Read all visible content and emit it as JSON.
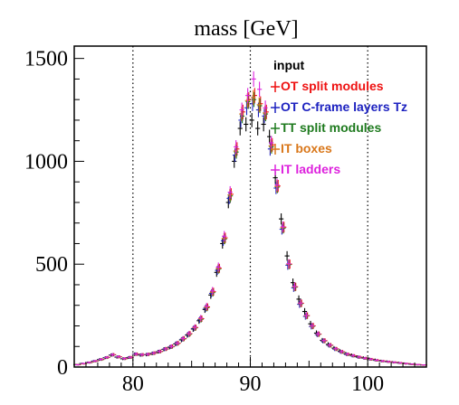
{
  "chart_data": {
    "type": "scatter",
    "title": "mass [GeV]",
    "xlabel": "",
    "ylabel": "",
    "xlim": [
      75,
      105
    ],
    "ylim": [
      0,
      1560
    ],
    "x_ticks": [
      80,
      90,
      100
    ],
    "y_ticks": [
      0,
      500,
      1000,
      1500
    ],
    "x_tick_labels": [
      "80",
      "90",
      "100"
    ],
    "y_tick_labels": [
      "0",
      "500",
      "1000",
      "1500"
    ],
    "grid": "vertical dotted lines at x ticks",
    "legend_position": "top-right",
    "error_bars": true,
    "x": [
      75.25,
      75.75,
      76.25,
      76.75,
      77.25,
      77.75,
      78.25,
      78.75,
      79.25,
      79.75,
      80.25,
      80.75,
      81.25,
      81.75,
      82.25,
      82.75,
      83.25,
      83.75,
      84.25,
      84.75,
      85.25,
      85.75,
      86.25,
      86.75,
      87.25,
      87.75,
      88.25,
      88.75,
      89.25,
      89.75,
      90.25,
      90.75,
      91.25,
      91.75,
      92.25,
      92.75,
      93.25,
      93.75,
      94.25,
      94.75,
      95.25,
      95.75,
      96.25,
      96.75,
      97.25,
      97.75,
      98.25,
      98.75,
      99.25,
      99.75,
      100.25,
      100.75,
      101.25,
      101.75,
      102.25,
      102.75,
      103.25,
      103.75,
      104.25,
      104.75
    ],
    "series": [
      {
        "name": "input",
        "color": "#000000",
        "values": [
          12,
          17,
          22,
          28,
          36,
          45,
          58,
          48,
          40,
          46,
          62,
          58,
          60,
          66,
          74,
          86,
          96,
          112,
          132,
          155,
          185,
          225,
          280,
          350,
          460,
          600,
          800,
          1000,
          1160,
          1180,
          1200,
          1160,
          1180,
          1120,
          920,
          720,
          540,
          410,
          330,
          270,
          210,
          165,
          130,
          110,
          92,
          78,
          65,
          58,
          50,
          45,
          40,
          35,
          30,
          27,
          24,
          21,
          18,
          15,
          12,
          10
        ]
      },
      {
        "name": "OT split modules",
        "color": "#ee1111",
        "values": [
          11,
          16,
          22,
          29,
          37,
          47,
          60,
          50,
          41,
          47,
          63,
          60,
          62,
          68,
          76,
          88,
          100,
          116,
          138,
          162,
          192,
          235,
          292,
          366,
          480,
          628,
          840,
          1060,
          1240,
          1300,
          1320,
          1280,
          1240,
          1080,
          880,
          680,
          500,
          390,
          310,
          250,
          200,
          160,
          128,
          106,
          88,
          74,
          62,
          55,
          48,
          43,
          38,
          33,
          29,
          26,
          23,
          20,
          17,
          14,
          12,
          10
        ]
      },
      {
        "name": "OT C-frame layers Tz",
        "color": "#1d22c0",
        "values": [
          12,
          17,
          22,
          29,
          37,
          46,
          59,
          49,
          41,
          47,
          63,
          59,
          61,
          67,
          75,
          87,
          98,
          114,
          135,
          158,
          188,
          230,
          286,
          358,
          470,
          614,
          820,
          1030,
          1200,
          1260,
          1280,
          1250,
          1220,
          1060,
          870,
          670,
          495,
          385,
          305,
          246,
          197,
          158,
          126,
          105,
          87,
          73,
          61,
          54,
          47,
          42,
          37,
          32,
          28,
          25,
          22,
          19,
          16,
          13,
          11,
          9
        ]
      },
      {
        "name": "TT split modules",
        "color": "#1e7a1e",
        "values": [
          11,
          16,
          21,
          28,
          36,
          46,
          59,
          49,
          40,
          46,
          62,
          59,
          61,
          67,
          75,
          87,
          98,
          114,
          136,
          159,
          190,
          232,
          288,
          362,
          476,
          622,
          832,
          1045,
          1220,
          1290,
          1300,
          1270,
          1230,
          1070,
          875,
          675,
          498,
          388,
          308,
          248,
          198,
          159,
          127,
          105,
          87,
          73,
          61,
          54,
          47,
          42,
          37,
          32,
          28,
          25,
          22,
          19,
          16,
          13,
          11,
          9
        ]
      },
      {
        "name": "IT boxes",
        "color": "#d9771a",
        "values": [
          12,
          16,
          22,
          28,
          37,
          46,
          59,
          49,
          41,
          47,
          62,
          59,
          61,
          67,
          75,
          88,
          99,
          115,
          137,
          160,
          191,
          234,
          290,
          364,
          478,
          625,
          836,
          1050,
          1230,
          1295,
          1310,
          1275,
          1235,
          1075,
          878,
          678,
          500,
          390,
          309,
          249,
          199,
          160,
          128,
          106,
          88,
          74,
          62,
          55,
          48,
          42,
          37,
          32,
          28,
          25,
          22,
          19,
          16,
          13,
          11,
          9
        ]
      },
      {
        "name": "IT ladders",
        "color": "#dd22dd",
        "values": [
          11,
          17,
          22,
          29,
          37,
          47,
          60,
          50,
          41,
          47,
          63,
          60,
          62,
          68,
          76,
          88,
          100,
          116,
          139,
          163,
          194,
          238,
          295,
          370,
          486,
          636,
          850,
          1070,
          1250,
          1320,
          1400,
          1350,
          1260,
          1090,
          885,
          682,
          502,
          392,
          311,
          251,
          201,
          161,
          129,
          107,
          89,
          75,
          63,
          56,
          49,
          43,
          38,
          33,
          29,
          26,
          23,
          20,
          17,
          14,
          12,
          10
        ]
      }
    ]
  }
}
